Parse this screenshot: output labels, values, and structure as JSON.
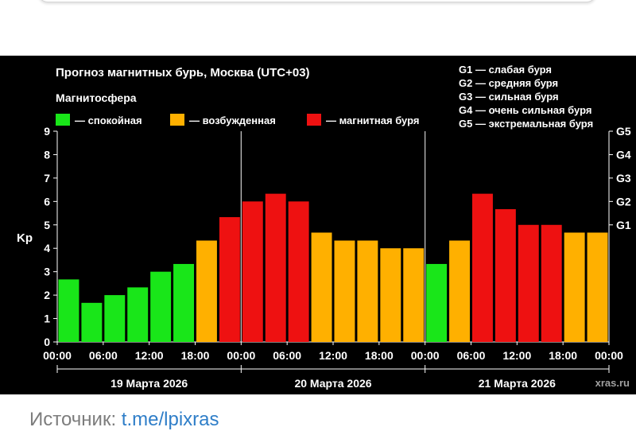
{
  "chart_data": {
    "type": "bar",
    "title": "Прогноз магнитных бурь, Москва (UTC+03)",
    "legend_title": "Магнитосфера",
    "legend": [
      {
        "label": "— спокойная",
        "color": "#19e619"
      },
      {
        "label": "— возбужденная",
        "color": "#ffb000"
      },
      {
        "label": "— магнитная буря",
        "color": "#ee1111"
      }
    ],
    "g_scale": [
      "G1 — слабая буря",
      "G2 — средняя буря",
      "G3 — сильная буря",
      "G4 — очень сильная буря",
      "G5 — экстремальная буря"
    ],
    "ylabel": "Kp",
    "ylim": [
      0,
      9
    ],
    "yticks": [
      0,
      1,
      2,
      3,
      4,
      5,
      6,
      7,
      8,
      9
    ],
    "right_ticks": [
      {
        "value": 5,
        "label": "G1"
      },
      {
        "value": 6,
        "label": "G2"
      },
      {
        "value": 7,
        "label": "G3"
      },
      {
        "value": 8,
        "label": "G4"
      },
      {
        "value": 9,
        "label": "G5"
      }
    ],
    "xtick_labels": [
      "00:00",
      "06:00",
      "12:00",
      "18:00",
      "00:00",
      "06:00",
      "12:00",
      "18:00",
      "00:00",
      "06:00",
      "12:00",
      "18:00",
      "00:00"
    ],
    "days": [
      "19 Марта 2026",
      "20 Марта 2026",
      "21 Марта 2026"
    ],
    "bars_per_day": 8,
    "values": [
      2.67,
      1.67,
      2.0,
      2.33,
      3.0,
      3.33,
      4.33,
      5.33,
      6.0,
      6.33,
      6.0,
      4.67,
      4.33,
      4.33,
      4.0,
      4.0,
      3.33,
      4.33,
      6.33,
      5.67,
      5.0,
      5.0,
      4.67,
      4.67
    ],
    "levels": [
      "calm",
      "calm",
      "calm",
      "calm",
      "calm",
      "calm",
      "active",
      "storm",
      "storm",
      "storm",
      "storm",
      "active",
      "active",
      "active",
      "active",
      "active",
      "calm",
      "active",
      "storm",
      "storm",
      "storm",
      "storm",
      "active",
      "active"
    ],
    "colors": {
      "calm": "#19e619",
      "active": "#ffb000",
      "storm": "#ee1111"
    },
    "grid": false,
    "watermark": "xras.ru"
  },
  "source": {
    "label": "Источник: ",
    "link": "t.me/lpixras"
  }
}
